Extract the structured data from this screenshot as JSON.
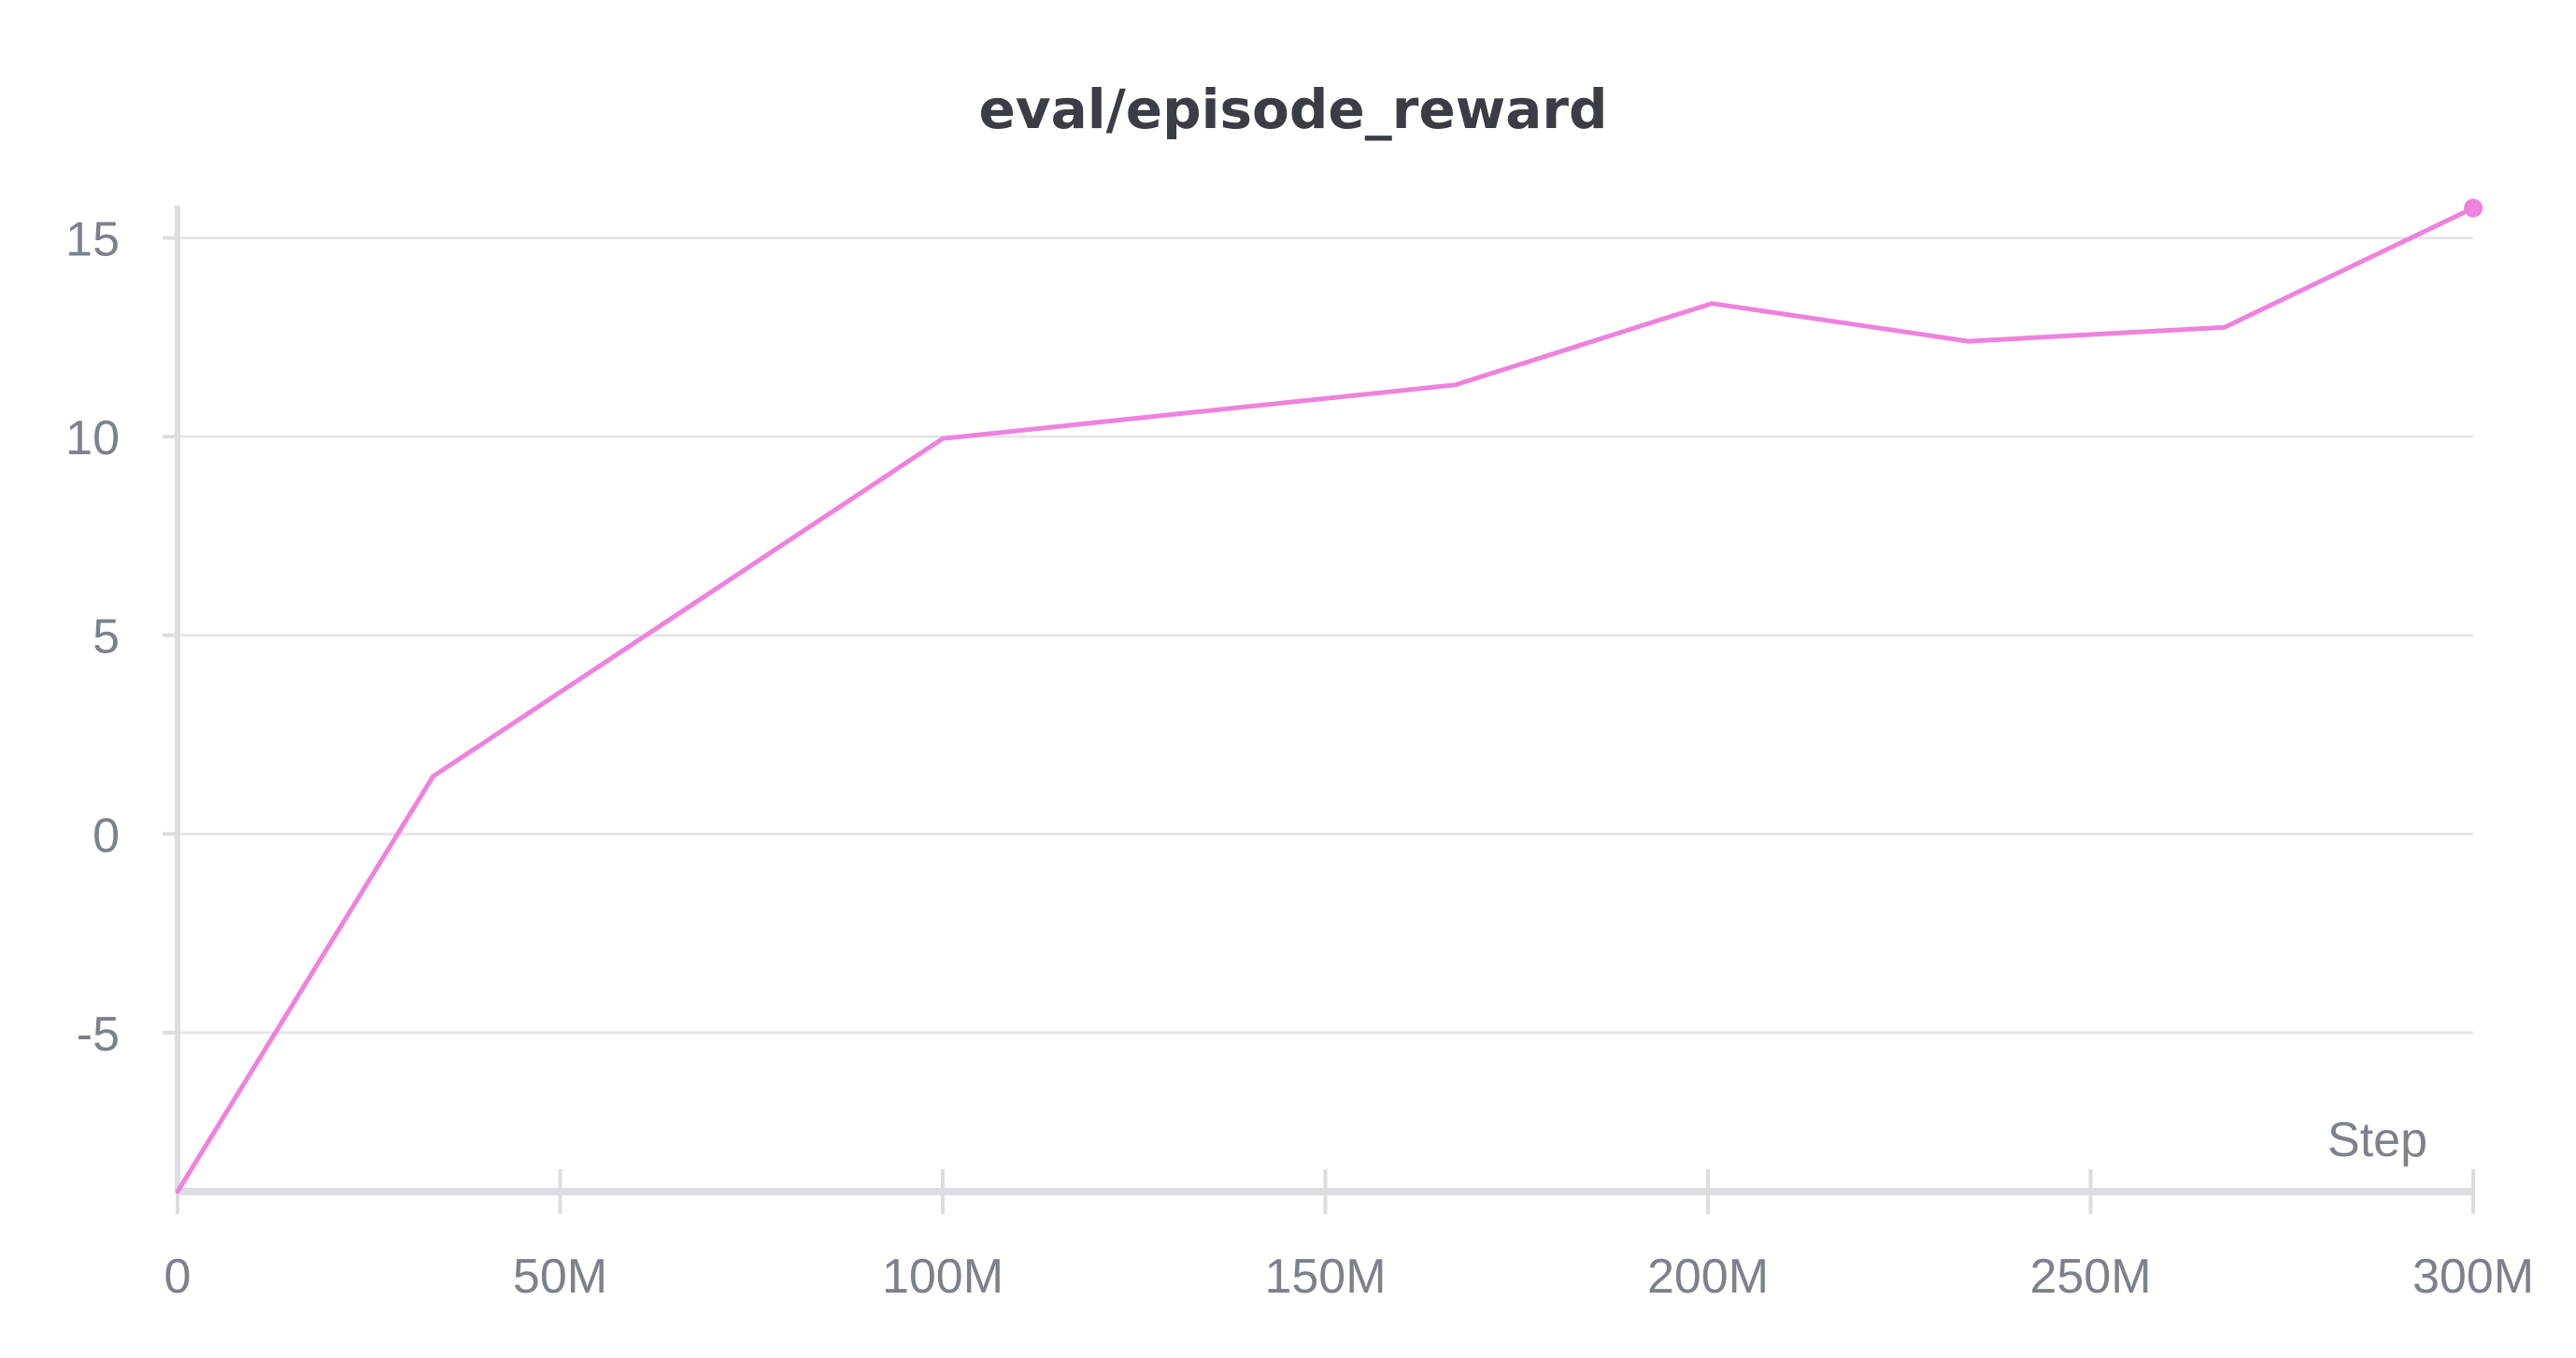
{
  "chart_data": {
    "type": "line",
    "title": "eval/episode_reward",
    "xlabel": "Step",
    "ylabel": "",
    "x_tick_labels": [
      "0",
      "50M",
      "100M",
      "150M",
      "200M",
      "250M",
      "300M"
    ],
    "x_ticks": [
      0,
      50000000,
      100000000,
      150000000,
      200000000,
      250000000,
      300000000
    ],
    "y_tick_labels": [
      "15",
      "10",
      "5",
      "0",
      "-5"
    ],
    "y_ticks": [
      15,
      10,
      5,
      0,
      -5
    ],
    "xlim": [
      0,
      300000000
    ],
    "ylim": [
      -9,
      16
    ],
    "grid": true,
    "series": [
      {
        "color": "#ee82dc",
        "x": [
          0,
          33400000,
          100000000,
          167000000,
          200500000,
          234000000,
          267500000,
          300000000
        ],
        "y": [
          -9.0,
          1.45,
          9.95,
          11.3,
          13.35,
          12.4,
          12.75,
          15.75
        ]
      }
    ]
  }
}
